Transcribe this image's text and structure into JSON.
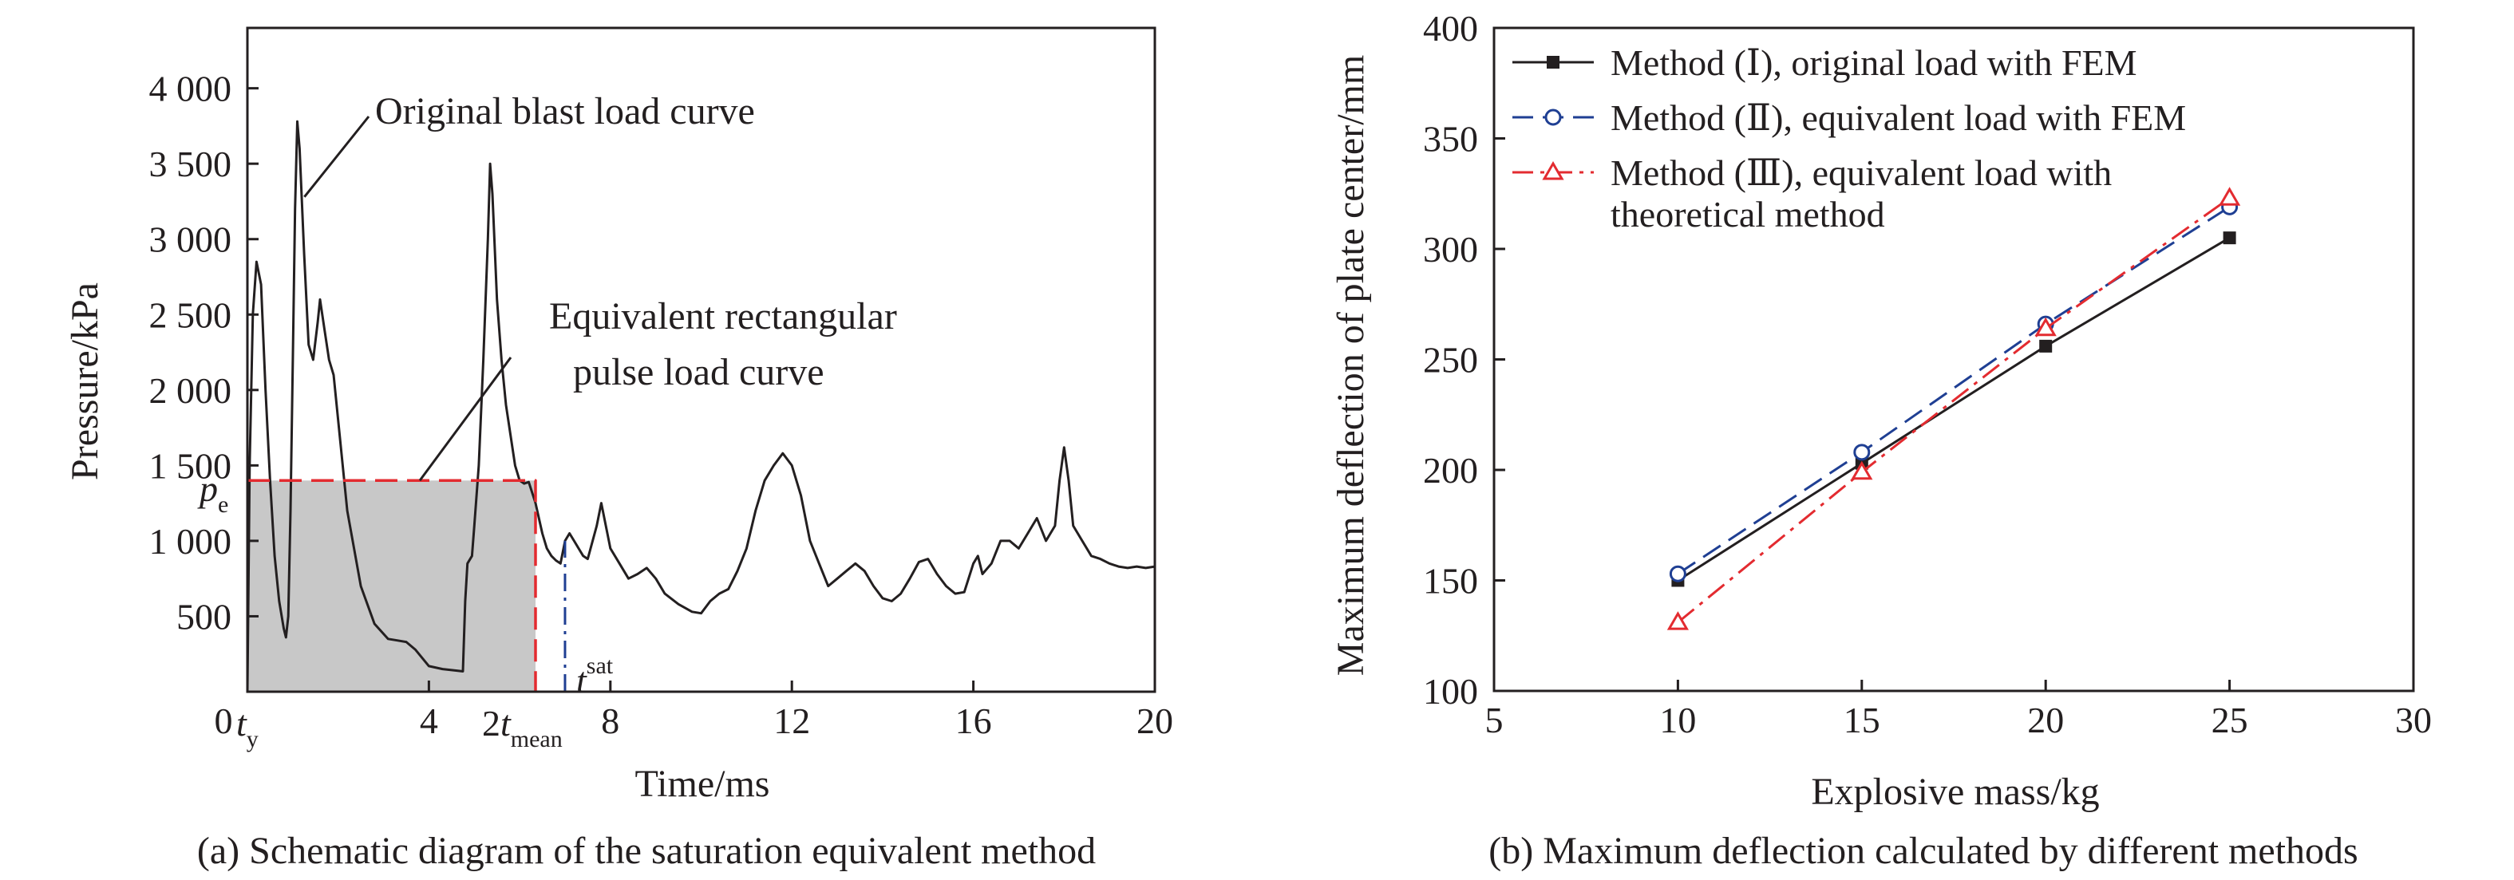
{
  "figure": {
    "charts": [
      {
        "id": "a",
        "caption": "(a) Schematic diagram of the saturation equivalent method",
        "xlabel": "Time/ms",
        "ylabel": "Pressure/kPa",
        "xlim": [
          0,
          20
        ],
        "ylim": [
          0,
          4400
        ]
      },
      {
        "id": "b",
        "caption": "(b) Maximum deflection calculated by different methods",
        "xlabel": "Explosive mass/kg",
        "ylabel": "Maximum deflection of plate center/mm",
        "xlim": [
          5,
          30
        ],
        "ylim": [
          100,
          400
        ]
      }
    ]
  },
  "chart_data": [
    {
      "type": "line",
      "x_ticks": [
        {
          "v": 0,
          "label": "0"
        },
        {
          "v": 4,
          "label": "4"
        },
        {
          "v": 8,
          "label": "8"
        },
        {
          "v": 12,
          "label": "12"
        },
        {
          "v": 16,
          "label": "16"
        },
        {
          "v": 20,
          "label": "20"
        }
      ],
      "y_ticks": [
        {
          "v": 500,
          "label": "500"
        },
        {
          "v": 1000,
          "label": "1 000"
        },
        {
          "v": 1500,
          "label": "1 500"
        },
        {
          "v": 2000,
          "label": "2 000"
        },
        {
          "v": 2500,
          "label": "2 500"
        },
        {
          "v": 3000,
          "label": "3 000"
        },
        {
          "v": 3500,
          "label": "3 500"
        },
        {
          "v": 4000,
          "label": "4 000"
        }
      ],
      "series": [
        {
          "color": "#231f20",
          "points": [
            [
              0,
              0
            ],
            [
              0.05,
              1500
            ],
            [
              0.12,
              2500
            ],
            [
              0.2,
              2850
            ],
            [
              0.3,
              2700
            ],
            [
              0.4,
              2000
            ],
            [
              0.5,
              1400
            ],
            [
              0.6,
              900
            ],
            [
              0.7,
              600
            ],
            [
              0.8,
              420
            ],
            [
              0.85,
              360
            ],
            [
              0.9,
              500
            ],
            [
              0.95,
              1200
            ],
            [
              1.0,
              2200
            ],
            [
              1.05,
              3200
            ],
            [
              1.1,
              3780
            ],
            [
              1.15,
              3600
            ],
            [
              1.25,
              2900
            ],
            [
              1.35,
              2300
            ],
            [
              1.45,
              2200
            ],
            [
              1.55,
              2450
            ],
            [
              1.6,
              2600
            ],
            [
              1.7,
              2400
            ],
            [
              1.8,
              2200
            ],
            [
              1.9,
              2100
            ],
            [
              2.0,
              1800
            ],
            [
              2.2,
              1200
            ],
            [
              2.5,
              700
            ],
            [
              2.8,
              450
            ],
            [
              3.1,
              350
            ],
            [
              3.3,
              340
            ],
            [
              3.5,
              330
            ],
            [
              3.7,
              280
            ],
            [
              4.0,
              170
            ],
            [
              4.3,
              150
            ],
            [
              4.6,
              140
            ],
            [
              4.75,
              135
            ],
            [
              4.8,
              600
            ],
            [
              4.85,
              850
            ],
            [
              4.95,
              900
            ],
            [
              5.0,
              1100
            ],
            [
              5.1,
              1500
            ],
            [
              5.2,
              2200
            ],
            [
              5.3,
              3000
            ],
            [
              5.35,
              3500
            ],
            [
              5.4,
              3300
            ],
            [
              5.5,
              2600
            ],
            [
              5.6,
              2200
            ],
            [
              5.7,
              1900
            ],
            [
              5.8,
              1700
            ],
            [
              5.9,
              1500
            ],
            [
              6.0,
              1400
            ],
            [
              6.1,
              1380
            ],
            [
              6.2,
              1390
            ],
            [
              6.35,
              1250
            ],
            [
              6.5,
              1050
            ],
            [
              6.6,
              950
            ],
            [
              6.7,
              900
            ],
            [
              6.8,
              870
            ],
            [
              6.9,
              850
            ],
            [
              7.0,
              1000
            ],
            [
              7.1,
              1050
            ],
            [
              7.2,
              1000
            ],
            [
              7.3,
              950
            ],
            [
              7.4,
              900
            ],
            [
              7.5,
              880
            ],
            [
              7.7,
              1100
            ],
            [
              7.8,
              1250
            ],
            [
              7.9,
              1100
            ],
            [
              8.0,
              950
            ],
            [
              8.2,
              850
            ],
            [
              8.4,
              750
            ],
            [
              8.6,
              780
            ],
            [
              8.8,
              820
            ],
            [
              9.0,
              750
            ],
            [
              9.2,
              650
            ],
            [
              9.5,
              580
            ],
            [
              9.8,
              530
            ],
            [
              10.0,
              520
            ],
            [
              10.2,
              600
            ],
            [
              10.4,
              650
            ],
            [
              10.6,
              680
            ],
            [
              10.8,
              800
            ],
            [
              11.0,
              950
            ],
            [
              11.2,
              1200
            ],
            [
              11.4,
              1400
            ],
            [
              11.6,
              1500
            ],
            [
              11.8,
              1580
            ],
            [
              12.0,
              1500
            ],
            [
              12.2,
              1300
            ],
            [
              12.4,
              1000
            ],
            [
              12.6,
              850
            ],
            [
              12.8,
              700
            ],
            [
              13.0,
              750
            ],
            [
              13.2,
              800
            ],
            [
              13.4,
              850
            ],
            [
              13.6,
              800
            ],
            [
              13.8,
              700
            ],
            [
              14.0,
              620
            ],
            [
              14.2,
              600
            ],
            [
              14.4,
              650
            ],
            [
              14.6,
              750
            ],
            [
              14.8,
              860
            ],
            [
              15.0,
              880
            ],
            [
              15.2,
              780
            ],
            [
              15.4,
              700
            ],
            [
              15.6,
              650
            ],
            [
              15.8,
              660
            ],
            [
              16.0,
              850
            ],
            [
              16.1,
              900
            ],
            [
              16.2,
              780
            ],
            [
              16.4,
              850
            ],
            [
              16.6,
              1000
            ],
            [
              16.8,
              1000
            ],
            [
              17.0,
              950
            ],
            [
              17.2,
              1050
            ],
            [
              17.4,
              1150
            ],
            [
              17.6,
              1000
            ],
            [
              17.8,
              1100
            ],
            [
              17.9,
              1400
            ],
            [
              18.0,
              1620
            ],
            [
              18.1,
              1400
            ],
            [
              18.2,
              1100
            ],
            [
              18.4,
              1000
            ],
            [
              18.6,
              900
            ],
            [
              18.8,
              880
            ],
            [
              19.0,
              850
            ],
            [
              19.2,
              830
            ],
            [
              19.4,
              820
            ],
            [
              19.6,
              830
            ],
            [
              19.8,
              820
            ],
            [
              20.0,
              830
            ]
          ]
        },
        {
          "color": "#e32b30",
          "points": [
            [
              0,
              1400
            ],
            [
              6.35,
              1400
            ],
            [
              6.35,
              0
            ]
          ]
        }
      ],
      "shaded_region": {
        "x": [
          0,
          6.35
        ],
        "y": [
          0,
          1400
        ],
        "color": "#c8c8c8"
      },
      "marker_lines": [
        {
          "x": 7.0,
          "y": [
            0,
            1000
          ],
          "color": "#1f3f93"
        }
      ],
      "annotations": [
        {
          "text": "Original blast load curve",
          "at": [
            1.15,
            3780
          ]
        },
        {
          "text": "Equivalent rectangular",
          "line2": "pulse load curve",
          "at": [
            3.8,
            1400
          ]
        }
      ],
      "math_labels": {
        "t_y": {
          "main": "t",
          "sub": "y"
        },
        "t_mean": {
          "coef": "2",
          "main": "t",
          "sub": "mean"
        },
        "t_sat": {
          "main": "t",
          "sup": "sat"
        },
        "p_e": {
          "main": "p",
          "sub": "e"
        }
      }
    },
    {
      "type": "line",
      "x_ticks": [
        {
          "v": 5,
          "label": "5"
        },
        {
          "v": 10,
          "label": "10"
        },
        {
          "v": 15,
          "label": "15"
        },
        {
          "v": 20,
          "label": "20"
        },
        {
          "v": 25,
          "label": "25"
        },
        {
          "v": 30,
          "label": "30"
        }
      ],
      "y_ticks": [
        {
          "v": 100,
          "label": "100"
        },
        {
          "v": 150,
          "label": "150"
        },
        {
          "v": 200,
          "label": "200"
        },
        {
          "v": 250,
          "label": "250"
        },
        {
          "v": 300,
          "label": "300"
        },
        {
          "v": 350,
          "label": "350"
        },
        {
          "v": 400,
          "label": "400"
        }
      ],
      "legend_position": "top-left",
      "series": [
        {
          "name": "Method (Ⅰ), original load with FEM",
          "color": "#231f20",
          "dash": "solid",
          "marker": "filled-square",
          "x": [
            10,
            15,
            20,
            25
          ],
          "values": [
            150,
            203,
            256,
            305
          ]
        },
        {
          "name": "Method (Ⅱ), equivalent load with FEM",
          "color": "#1f3f93",
          "dash": "dashed",
          "marker": "open-circle",
          "x": [
            10,
            15,
            20,
            25
          ],
          "values": [
            153,
            208,
            266,
            319
          ]
        },
        {
          "name": "Method (Ⅲ), equivalent load with",
          "name_line2": "theoretical method",
          "color": "#e32b30",
          "dash": "dash-dot",
          "marker": "open-triangle",
          "x": [
            10,
            15,
            20,
            25
          ],
          "values": [
            131,
            199,
            264,
            323
          ]
        }
      ]
    }
  ]
}
